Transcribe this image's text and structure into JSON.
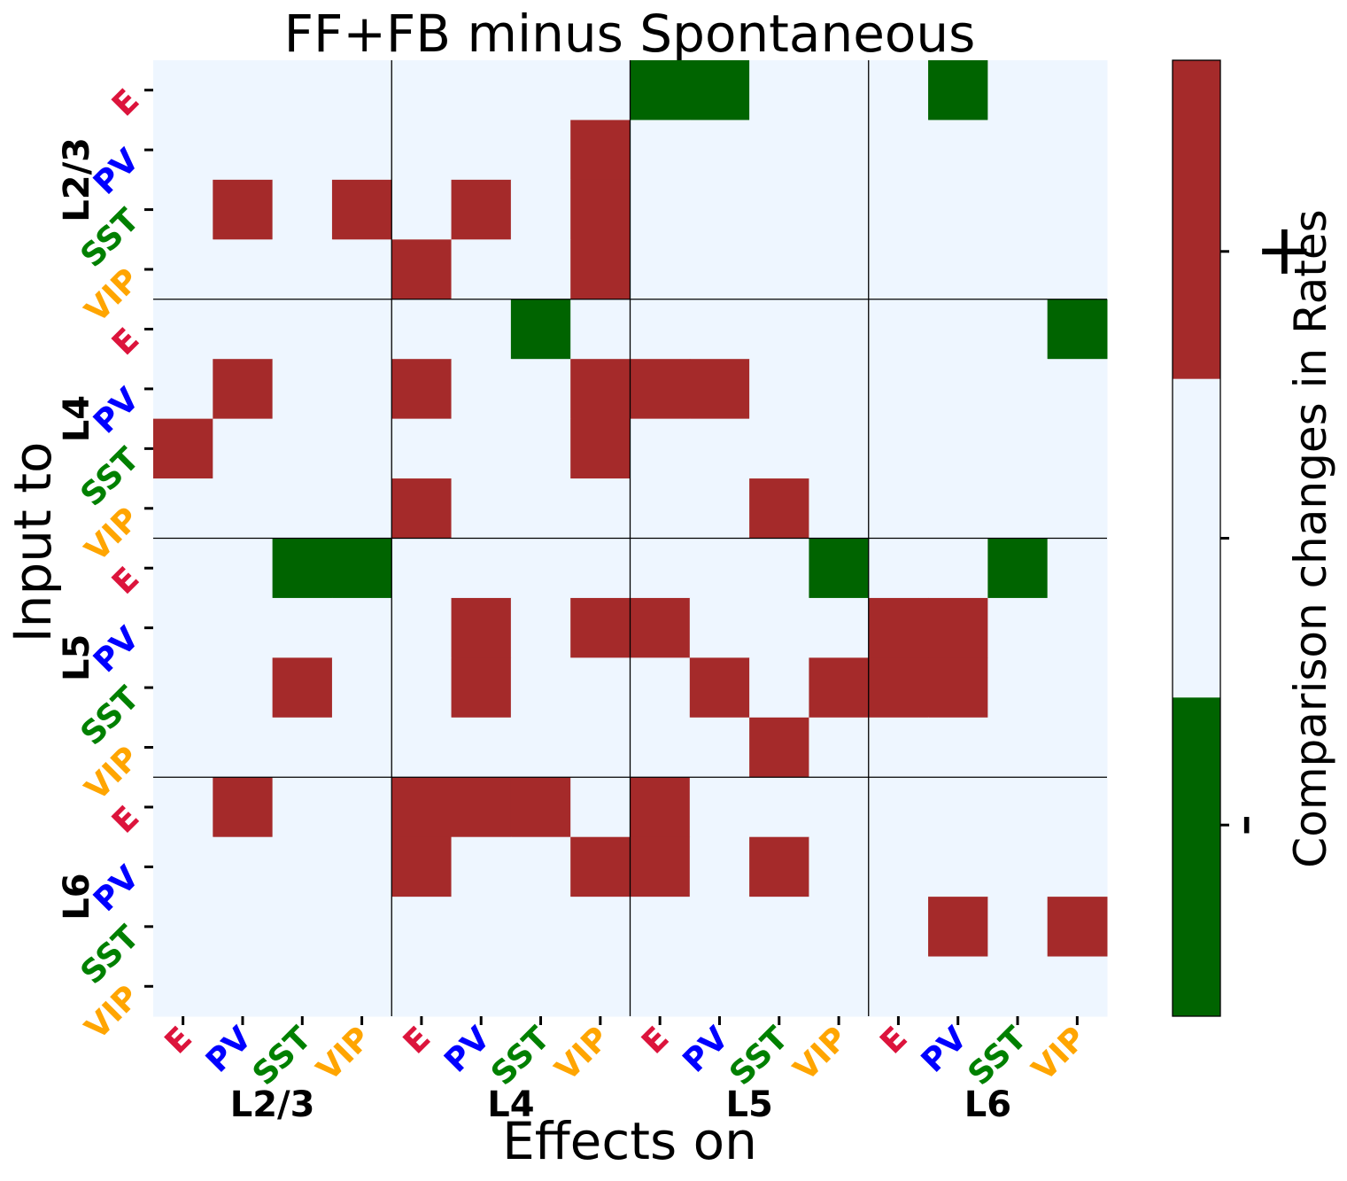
{
  "chart_data": {
    "type": "heatmap",
    "title": "FF+FB minus Spontaneous",
    "xlabel": "Effects on",
    "ylabel": "Input to",
    "colorbar": {
      "label": "Comparison changes in Rates",
      "tick_labels": {
        "positive": "+",
        "negative": "-"
      },
      "levels": [
        -1,
        0,
        1
      ]
    },
    "colors": {
      "positive": "#a52a2a",
      "neutral": "#eef6ff",
      "negative": "#006400"
    },
    "groups": [
      "L2/3",
      "L4",
      "L5",
      "L6"
    ],
    "cell_types": [
      "E",
      "PV",
      "SST",
      "VIP"
    ],
    "cell_type_colors": {
      "E": "#dc143c",
      "PV": "#0000ff",
      "SST": "#008000",
      "VIP": "#ffa500"
    },
    "matrix": [
      [
        0,
        0,
        0,
        0,
        0,
        0,
        0,
        0,
        -1,
        -1,
        0,
        0,
        0,
        -1,
        0,
        0
      ],
      [
        0,
        0,
        0,
        0,
        0,
        0,
        0,
        1,
        0,
        0,
        0,
        0,
        0,
        0,
        0,
        0
      ],
      [
        0,
        1,
        0,
        1,
        0,
        1,
        0,
        1,
        0,
        0,
        0,
        0,
        0,
        0,
        0,
        0
      ],
      [
        0,
        0,
        0,
        0,
        1,
        0,
        0,
        1,
        0,
        0,
        0,
        0,
        0,
        0,
        0,
        0
      ],
      [
        0,
        0,
        0,
        0,
        0,
        0,
        -1,
        0,
        0,
        0,
        0,
        0,
        0,
        0,
        0,
        -1
      ],
      [
        0,
        1,
        0,
        0,
        1,
        0,
        0,
        1,
        1,
        1,
        0,
        0,
        0,
        0,
        0,
        0
      ],
      [
        1,
        0,
        0,
        0,
        0,
        0,
        0,
        1,
        0,
        0,
        0,
        0,
        0,
        0,
        0,
        0
      ],
      [
        0,
        0,
        0,
        0,
        1,
        0,
        0,
        0,
        0,
        0,
        1,
        0,
        0,
        0,
        0,
        0
      ],
      [
        0,
        0,
        -1,
        -1,
        0,
        0,
        0,
        0,
        0,
        0,
        0,
        -1,
        0,
        0,
        -1,
        0
      ],
      [
        0,
        0,
        0,
        0,
        0,
        1,
        0,
        1,
        1,
        0,
        0,
        0,
        1,
        1,
        0,
        0
      ],
      [
        0,
        0,
        1,
        0,
        0,
        1,
        0,
        0,
        0,
        1,
        0,
        1,
        1,
        1,
        0,
        0
      ],
      [
        0,
        0,
        0,
        0,
        0,
        0,
        0,
        0,
        0,
        0,
        1,
        0,
        0,
        0,
        0,
        0
      ],
      [
        0,
        1,
        0,
        0,
        1,
        1,
        1,
        0,
        1,
        0,
        0,
        0,
        0,
        0,
        0,
        0
      ],
      [
        0,
        0,
        0,
        0,
        1,
        0,
        0,
        1,
        1,
        0,
        1,
        0,
        0,
        0,
        0,
        0
      ],
      [
        0,
        0,
        0,
        0,
        0,
        0,
        0,
        0,
        0,
        0,
        0,
        0,
        0,
        1,
        0,
        1
      ],
      [
        0,
        0,
        0,
        0,
        0,
        0,
        0,
        0,
        0,
        0,
        0,
        0,
        0,
        0,
        0,
        0
      ]
    ]
  }
}
